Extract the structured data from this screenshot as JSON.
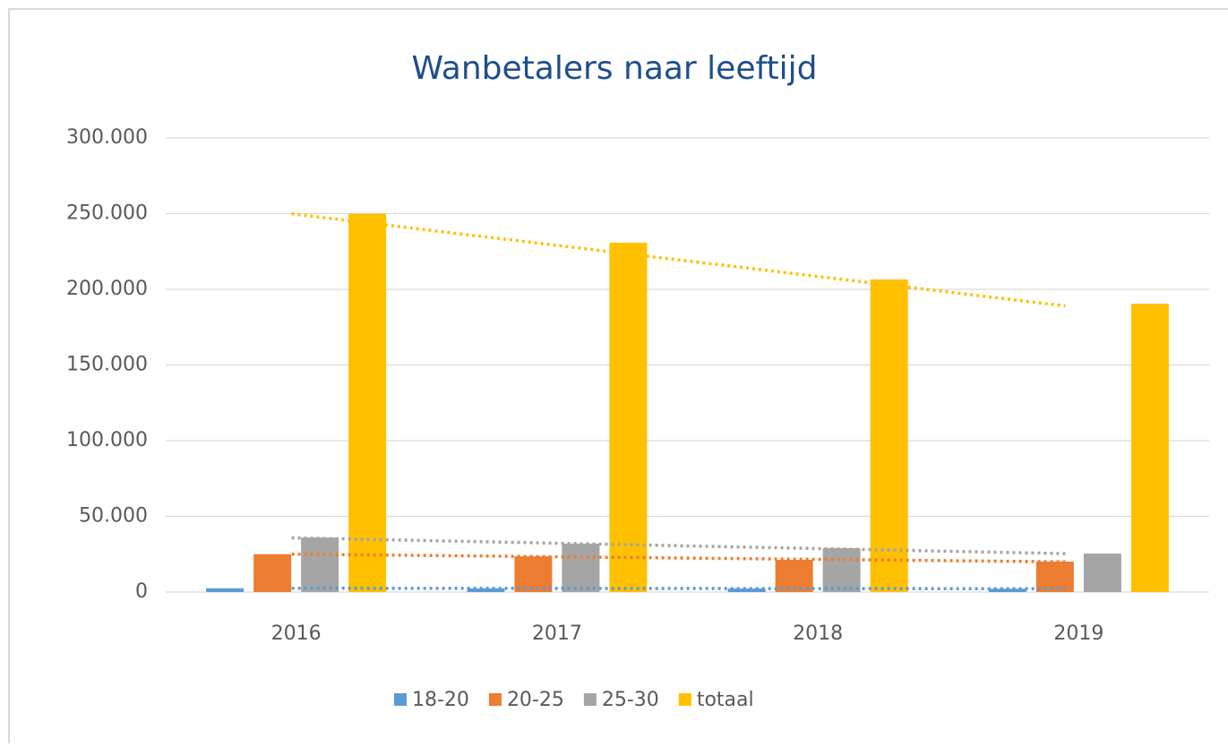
{
  "chart_data": {
    "type": "bar",
    "title": "Wanbetalers naar leeftijd",
    "categories": [
      "2016",
      "2017",
      "2018",
      "2019"
    ],
    "series": [
      {
        "name": "18-20",
        "color": "#5b9bd5",
        "values": [
          2500,
          2400,
          2300,
          2200
        ]
      },
      {
        "name": "20-25",
        "color": "#ed7d31",
        "values": [
          25000,
          23600,
          21300,
          20100
        ]
      },
      {
        "name": "25-30",
        "color": "#a5a5a5",
        "values": [
          36000,
          32000,
          29000,
          25400
        ]
      },
      {
        "name": "totaal",
        "color": "#ffc000",
        "values": [
          250000,
          230800,
          206500,
          190500
        ]
      }
    ],
    "ylim": [
      0,
      300000
    ],
    "yticks": [
      0,
      {
        "value": 50000,
        "label": "50.000"
      },
      {
        "value": 100000,
        "label": "100.000"
      },
      {
        "value": 150000,
        "label": "150.000"
      },
      {
        "value": 200000,
        "label": "200.000"
      },
      {
        "value": 250000,
        "label": "250.000"
      },
      {
        "value": 300000,
        "label": "300.000"
      }
    ],
    "grid": true,
    "trendline": "linear",
    "legend": "bottom"
  }
}
